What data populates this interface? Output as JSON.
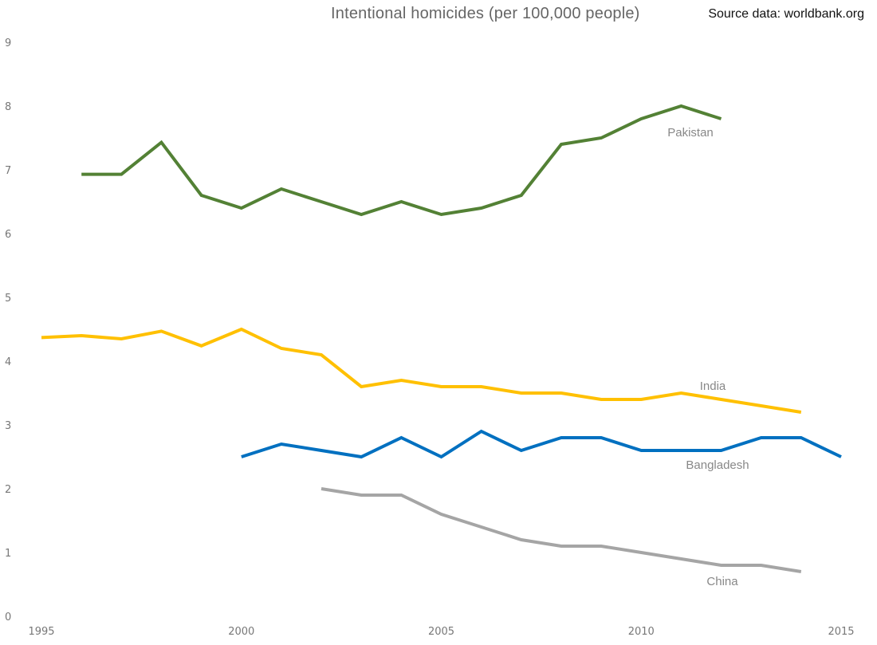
{
  "chart_data": {
    "type": "line",
    "title": "Intentional homicides (per 100,000 people)",
    "source": "Source data: worldbank.org",
    "xlabel": "",
    "ylabel": "",
    "xlim": [
      1995,
      2015
    ],
    "ylim": [
      0,
      9
    ],
    "x_ticks": [
      "1995",
      "2000",
      "2005",
      "2010",
      "2015"
    ],
    "y_ticks": [
      "0",
      "1",
      "2",
      "3",
      "4",
      "5",
      "6",
      "7",
      "8",
      "9"
    ],
    "grid": false,
    "legend": "inline labels",
    "series": [
      {
        "name": "Pakistan",
        "color": "#538135",
        "x": [
          1996,
          1997,
          1998,
          1999,
          2000,
          2001,
          2002,
          2003,
          2004,
          2005,
          2006,
          2007,
          2008,
          2009,
          2010,
          2011,
          2012
        ],
        "values": [
          6.93,
          6.93,
          7.43,
          6.6,
          6.4,
          6.7,
          6.5,
          6.3,
          6.5,
          6.3,
          6.4,
          6.6,
          7.4,
          7.5,
          7.8,
          8.0,
          7.8
        ]
      },
      {
        "name": "India",
        "color": "#FFC000",
        "x": [
          1995,
          1996,
          1997,
          1998,
          1999,
          2000,
          2001,
          2002,
          2003,
          2004,
          2005,
          2006,
          2007,
          2008,
          2009,
          2010,
          2011,
          2012,
          2013,
          2014
        ],
        "values": [
          4.37,
          4.4,
          4.35,
          4.47,
          4.24,
          4.5,
          4.2,
          4.1,
          3.6,
          3.7,
          3.6,
          3.6,
          3.5,
          3.5,
          3.4,
          3.4,
          3.5,
          3.4,
          3.3,
          3.2
        ]
      },
      {
        "name": "Bangladesh",
        "color": "#0070C0",
        "x": [
          2000,
          2001,
          2002,
          2003,
          2004,
          2005,
          2006,
          2007,
          2008,
          2009,
          2010,
          2011,
          2012,
          2013,
          2014,
          2015
        ],
        "values": [
          2.5,
          2.7,
          2.6,
          2.5,
          2.8,
          2.5,
          2.9,
          2.6,
          2.8,
          2.8,
          2.6,
          2.6,
          2.6,
          2.8,
          2.8,
          2.5
        ]
      },
      {
        "name": "China",
        "color": "#A5A5A5",
        "x": [
          2002,
          2003,
          2004,
          2005,
          2006,
          2007,
          2008,
          2009,
          2010,
          2011,
          2012,
          2013,
          2014
        ],
        "values": [
          2.0,
          1.9,
          1.9,
          1.6,
          1.4,
          1.2,
          1.1,
          1.1,
          1.0,
          0.9,
          0.8,
          0.8,
          0.7
        ]
      }
    ]
  }
}
